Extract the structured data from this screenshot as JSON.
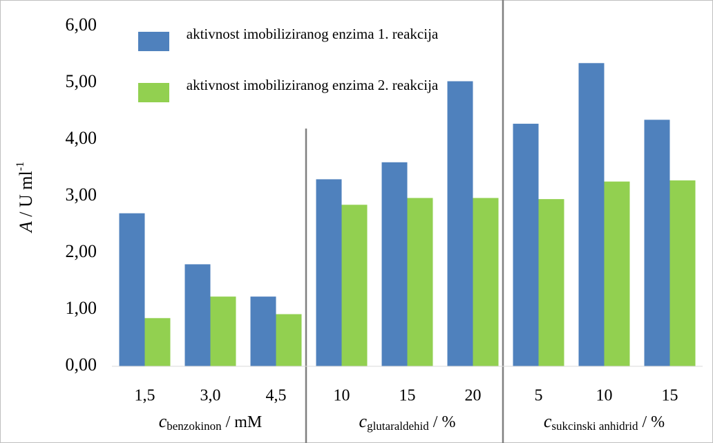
{
  "chart_data": {
    "type": "bar",
    "ylabel_symbol": "A",
    "ylabel_unit": " / U ml",
    "ylabel_sup": "-1",
    "categories": [
      "1,5",
      "3,0",
      "4,5",
      "10",
      "15",
      "20",
      "5",
      "10",
      "15"
    ],
    "groups": [
      {
        "symbol": "c",
        "subscript": "benzokinon",
        "unit": " / mM"
      },
      {
        "symbol": "c",
        "subscript": "glutaraldehid",
        "unit": " / %"
      },
      {
        "symbol": "c",
        "subscript": "sukcinski anhidrid",
        "unit": " / %"
      }
    ],
    "series": [
      {
        "name": "aktivnost imobiliziranog enzima 1. reakcija",
        "color": "#4f81bd",
        "values": [
          2.7,
          1.8,
          1.23,
          3.3,
          3.6,
          5.03,
          4.28,
          5.35,
          4.35
        ]
      },
      {
        "name": "aktivnost imobiliziranog enzima 2. reakcija",
        "color": "#92d050",
        "values": [
          0.85,
          1.23,
          0.92,
          2.85,
          2.97,
          2.97,
          2.95,
          3.26,
          3.28
        ]
      }
    ],
    "ylim": [
      0,
      6
    ],
    "yticks": [
      {
        "value": 0,
        "label": "0,00"
      },
      {
        "value": 1,
        "label": "1,00"
      },
      {
        "value": 2,
        "label": "2,00"
      },
      {
        "value": 3,
        "label": "3,00"
      },
      {
        "value": 4,
        "label": "4,00"
      },
      {
        "value": 5,
        "label": "5,00"
      },
      {
        "value": 6,
        "label": "6,00"
      }
    ]
  }
}
